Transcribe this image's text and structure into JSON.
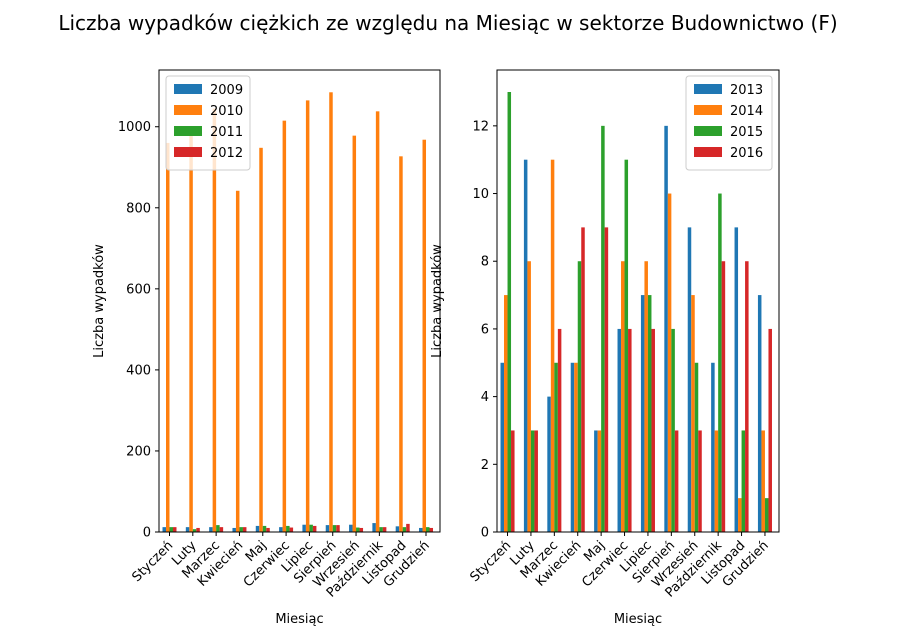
{
  "title": "Liczba wypadków ciężkich ze względu na Miesiąc w sektorze Budownictwo  (F)",
  "colors": {
    "c0": "#1f77b4",
    "c1": "#ff7f0e",
    "c2": "#2ca02c",
    "c3": "#d62728"
  },
  "chart_data": [
    {
      "type": "bar",
      "xlabel": "Miesiąc",
      "ylabel": "Liczba wypadków",
      "ylim": [
        0,
        1140
      ],
      "yticks": [
        0,
        200,
        400,
        600,
        800,
        1000
      ],
      "legend_position": "top-left",
      "categories": [
        "Styczeń",
        "Luty",
        "Marzec",
        "Kwiecień",
        "Maj",
        "Czerwiec",
        "Lipiec",
        "Sierpień",
        "Wrzesień",
        "Październik",
        "Listopad",
        "Grudzień"
      ],
      "series": [
        {
          "name": "2009",
          "values": [
            12,
            12,
            12,
            10,
            15,
            12,
            18,
            17,
            18,
            22,
            14,
            10
          ]
        },
        {
          "name": "2010",
          "values": [
            960,
            985,
            1045,
            842,
            948,
            1015,
            1065,
            1085,
            978,
            1038,
            927,
            968
          ]
        },
        {
          "name": "2011",
          "values": [
            12,
            7,
            17,
            12,
            15,
            15,
            18,
            17,
            11,
            12,
            12,
            12
          ]
        },
        {
          "name": "2012",
          "values": [
            12,
            10,
            12,
            12,
            10,
            11,
            15,
            17,
            10,
            12,
            20,
            10
          ]
        }
      ]
    },
    {
      "type": "bar",
      "xlabel": "Miesiąc",
      "ylabel": "Liczba wypadków",
      "ylim": [
        0,
        13.65
      ],
      "yticks": [
        0,
        2,
        4,
        6,
        8,
        10,
        12
      ],
      "legend_position": "top-right",
      "categories": [
        "Styczeń",
        "Luty",
        "Marzec",
        "Kwiecień",
        "Maj",
        "Czerwiec",
        "Lipiec",
        "Sierpień",
        "Wrzesień",
        "Październik",
        "Listopad",
        "Grudzień"
      ],
      "series": [
        {
          "name": "2013",
          "values": [
            5,
            11,
            4,
            5,
            3,
            6,
            7,
            12,
            9,
            5,
            9,
            7
          ]
        },
        {
          "name": "2014",
          "values": [
            7,
            8,
            11,
            5,
            3,
            8,
            8,
            10,
            7,
            3,
            1,
            3
          ]
        },
        {
          "name": "2015",
          "values": [
            13,
            3,
            5,
            8,
            12,
            11,
            7,
            6,
            5,
            10,
            3,
            1
          ]
        },
        {
          "name": "2016",
          "values": [
            3,
            3,
            6,
            9,
            9,
            6,
            6,
            3,
            3,
            8,
            8,
            6
          ]
        }
      ]
    }
  ]
}
